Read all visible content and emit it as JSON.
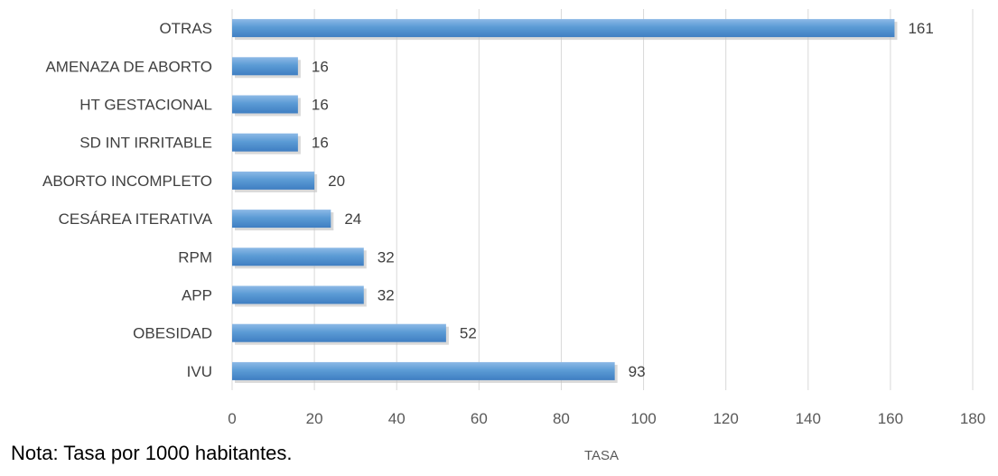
{
  "chart_data": {
    "type": "bar",
    "orientation": "horizontal",
    "categories": [
      "OTRAS",
      "AMENAZA DE ABORTO",
      "HT GESTACIONAL",
      "SD INT IRRITABLE",
      "ABORTO INCOMPLETO",
      "CESÁREA  ITERATIVA",
      "RPM",
      "APP",
      "OBESIDAD",
      "IVU"
    ],
    "values": [
      161,
      16,
      16,
      16,
      20,
      24,
      32,
      32,
      52,
      93
    ],
    "xlabel": "TASA",
    "xlim": [
      0,
      180
    ],
    "xticks": [
      0,
      20,
      40,
      60,
      80,
      100,
      120,
      140,
      160,
      180
    ],
    "grid": "vertical",
    "data_labels": true,
    "bar_color": "#5B9BD5"
  },
  "note": "Nota: Tasa por 1000 habitantes."
}
